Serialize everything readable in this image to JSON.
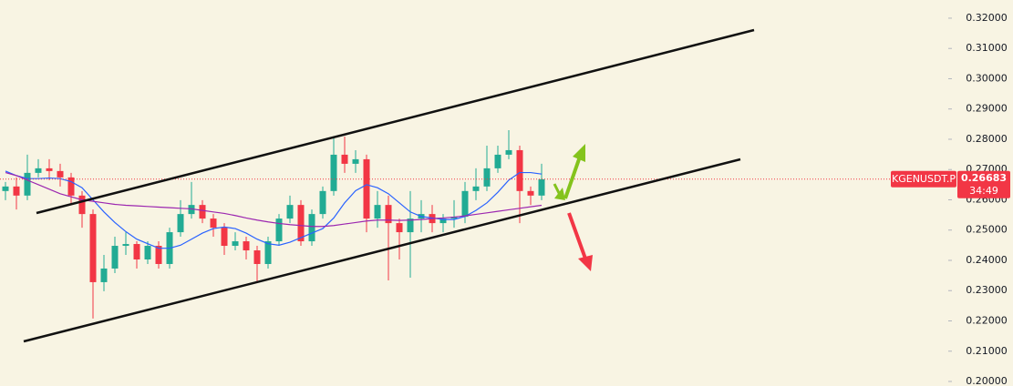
{
  "chart_data": {
    "type": "candlestick",
    "up_color": "#22ab94",
    "down_color": "#f23645",
    "ylim": [
      0.1985,
      0.326
    ],
    "yticks": [
      {
        "value": 0.2,
        "label": "0.20000"
      },
      {
        "value": 0.21,
        "label": "0.21000"
      },
      {
        "value": 0.22,
        "label": "0.22000"
      },
      {
        "value": 0.23,
        "label": "0.23000"
      },
      {
        "value": 0.24,
        "label": "0.24000"
      },
      {
        "value": 0.25,
        "label": "0.25000"
      },
      {
        "value": 0.26,
        "label": "0.26000"
      },
      {
        "value": 0.27,
        "label": "0.27000"
      },
      {
        "value": 0.28,
        "label": "0.28000"
      },
      {
        "value": 0.29,
        "label": "0.29000"
      },
      {
        "value": 0.3,
        "label": "0.30000"
      },
      {
        "value": 0.31,
        "label": "0.31000"
      },
      {
        "value": 0.32,
        "label": "0.32000"
      }
    ],
    "open": [
      0.2629,
      0.2644,
      0.2614,
      0.2689,
      0.2704,
      0.2695,
      0.2674,
      0.2614,
      0.2553,
      0.2328,
      0.2373,
      0.2448,
      0.2454,
      0.2403,
      0.2448,
      0.2388,
      0.2493,
      0.2553,
      0.2583,
      0.2538,
      0.2508,
      0.2448,
      0.2463,
      0.2433,
      0.2388,
      0.2463,
      0.2538,
      0.2583,
      0.2463,
      0.2553,
      0.2629,
      0.2749,
      0.2719,
      0.2734,
      0.2538,
      0.2583,
      0.2523,
      0.2493,
      0.2538,
      0.2553,
      0.2523,
      0.2538,
      0.2544,
      0.2629,
      0.2644,
      0.2704,
      0.2749,
      0.2764,
      0.2629,
      0.2614
    ],
    "high": [
      0.2659,
      0.2674,
      0.2749,
      0.2734,
      0.2734,
      0.2719,
      0.2689,
      0.2629,
      0.2568,
      0.2418,
      0.2478,
      0.2493,
      0.2463,
      0.2463,
      0.2463,
      0.2508,
      0.2599,
      0.2659,
      0.2599,
      0.2553,
      0.2523,
      0.2493,
      0.2478,
      0.2448,
      0.2478,
      0.2553,
      0.2614,
      0.2599,
      0.2568,
      0.2644,
      0.2809,
      0.2809,
      0.2764,
      0.2749,
      0.2629,
      0.2614,
      0.2538,
      0.2629,
      0.2599,
      0.2583,
      0.2553,
      0.2599,
      0.2659,
      0.2704,
      0.2779,
      0.2779,
      0.283,
      0.2779,
      0.2644,
      0.2719
    ],
    "low": [
      0.2599,
      0.2568,
      0.2599,
      0.2674,
      0.2665,
      0.2644,
      0.2583,
      0.2508,
      0.2208,
      0.2298,
      0.2358,
      0.2418,
      0.2373,
      0.2388,
      0.2373,
      0.2373,
      0.2478,
      0.2538,
      0.2523,
      0.2478,
      0.2418,
      0.2433,
      0.2403,
      0.2328,
      0.2373,
      0.2448,
      0.2523,
      0.2448,
      0.2448,
      0.2538,
      0.2614,
      0.2689,
      0.2689,
      0.2493,
      0.2508,
      0.2334,
      0.2403,
      0.2343,
      0.2493,
      0.2493,
      0.2493,
      0.2508,
      0.2523,
      0.2599,
      0.2629,
      0.2689,
      0.2734,
      0.2523,
      0.2583,
      0.2599
    ],
    "close": [
      0.2644,
      0.2614,
      0.2689,
      0.2704,
      0.2695,
      0.2674,
      0.2614,
      0.2553,
      0.2328,
      0.2373,
      0.2448,
      0.2454,
      0.2403,
      0.2448,
      0.2388,
      0.2493,
      0.2553,
      0.2583,
      0.2538,
      0.2508,
      0.2448,
      0.2463,
      0.2433,
      0.2388,
      0.2463,
      0.2538,
      0.2583,
      0.2463,
      0.2553,
      0.2629,
      0.2749,
      0.2719,
      0.2734,
      0.2538,
      0.2583,
      0.2523,
      0.2493,
      0.2538,
      0.2553,
      0.2523,
      0.2538,
      0.2544,
      0.2629,
      0.2644,
      0.2704,
      0.2749,
      0.2764,
      0.2629,
      0.2614,
      0.2668
    ],
    "series": [
      {
        "color": "#2962ff",
        "values": [
          0.2695,
          0.268,
          0.267,
          0.267,
          0.2672,
          0.267,
          0.266,
          0.264,
          0.26,
          0.256,
          0.2525,
          0.2495,
          0.247,
          0.2455,
          0.244,
          0.244,
          0.245,
          0.247,
          0.249,
          0.2505,
          0.251,
          0.2505,
          0.249,
          0.247,
          0.2455,
          0.245,
          0.246,
          0.2475,
          0.249,
          0.2505,
          0.254,
          0.259,
          0.263,
          0.265,
          0.264,
          0.262,
          0.259,
          0.256,
          0.2545,
          0.254,
          0.2535,
          0.2535,
          0.2545,
          0.2565,
          0.259,
          0.2625,
          0.2665,
          0.269,
          0.269,
          0.2685
        ]
      },
      {
        "color": "#9c27b0",
        "values": [
          0.269,
          0.268,
          0.2665,
          0.265,
          0.2635,
          0.262,
          0.261,
          0.26,
          0.2595,
          0.259,
          0.2585,
          0.2582,
          0.258,
          0.2578,
          0.2576,
          0.2574,
          0.2572,
          0.257,
          0.2565,
          0.256,
          0.2555,
          0.2548,
          0.254,
          0.2533,
          0.2527,
          0.2522,
          0.2518,
          0.2515,
          0.2512,
          0.2512,
          0.2515,
          0.252,
          0.2525,
          0.253,
          0.2533,
          0.2533,
          0.2532,
          0.2533,
          0.2535,
          0.2538,
          0.254,
          0.2543,
          0.2547,
          0.2552,
          0.2557,
          0.2562,
          0.2567,
          0.2572,
          0.2577,
          0.2582
        ]
      }
    ],
    "current_price": {
      "symbol": "KGENUSDT.P",
      "value": 0.26683,
      "countdown": "34:49",
      "color": "#f23645"
    }
  }
}
